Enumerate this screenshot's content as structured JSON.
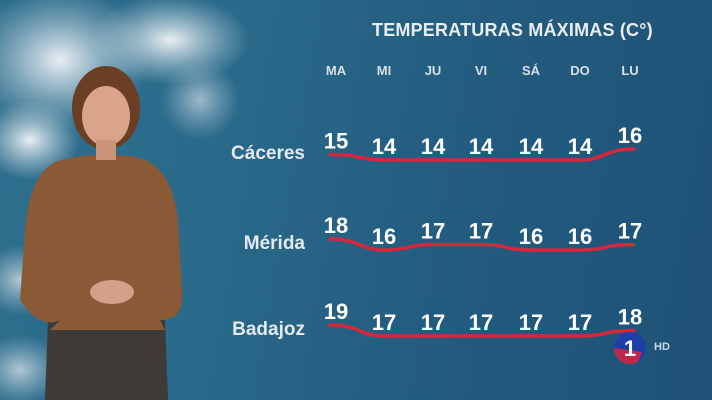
{
  "title": "TEMPERATURAS MÁXIMAS (C°)",
  "broadcaster": {
    "logo_text": "1",
    "hd_label": "HD"
  },
  "colors": {
    "line": "#d8263a",
    "background": "#235d80",
    "text": "#ffffff"
  },
  "chart_data": {
    "type": "line",
    "title": "TEMPERATURAS MÁXIMAS (C°)",
    "categories": [
      "MA",
      "MI",
      "JU",
      "VI",
      "SÁ",
      "DO",
      "LU"
    ],
    "series": [
      {
        "name": "Cáceres",
        "values": [
          15,
          14,
          14,
          14,
          14,
          14,
          16
        ]
      },
      {
        "name": "Mérida",
        "values": [
          18,
          16,
          17,
          17,
          16,
          16,
          17
        ]
      },
      {
        "name": "Badajoz",
        "values": [
          19,
          17,
          17,
          17,
          17,
          17,
          18
        ]
      }
    ],
    "grid": false,
    "legend": "none"
  }
}
